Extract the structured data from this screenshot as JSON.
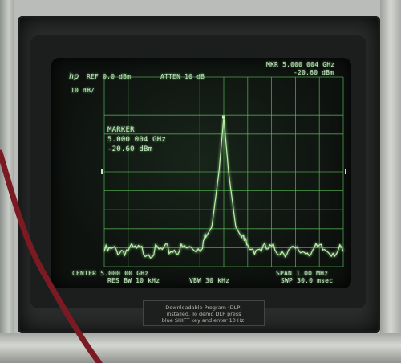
{
  "header": {
    "logo": "hp",
    "ref": "REF  0.0 dBm",
    "atten": "ATTEN 10 dB",
    "marker_readout_1": "MKR 5.000 004 GHz",
    "marker_readout_2": "-20.60 dBm",
    "scale": "10 dB/"
  },
  "marker": {
    "title": "MARKER",
    "frequency": "5.000 004 GHz",
    "level": "-20.60 dBm"
  },
  "footer": {
    "center": "CENTER 5.000 00 GHz",
    "span": "SPAN 1.00 MHz",
    "rbw": "RES BW 10 kHz",
    "vbw": "VBW 30 kHz",
    "sweep": "SWP 30.0 msec"
  },
  "label_plate": {
    "line1": "Downloadable Program (DLP)",
    "line2": "installed. To demo DLP press",
    "line3": "blue SHIFT key and enter 10 Hz."
  },
  "colors": {
    "trace": "#b6f2a6",
    "grid": "#57b957",
    "text": "#c8e7c4",
    "screen": "#0e120f",
    "cable": "#7a1a23"
  },
  "chart_data": {
    "type": "line",
    "x_range_mhz": [
      -0.5,
      0.5
    ],
    "ylim_db_div": [
      0,
      10
    ],
    "grid": true,
    "series": [
      {
        "values": [
          {
            "x": -0.5,
            "y": 0.8
          },
          {
            "x": -0.4,
            "y": 0.9
          },
          {
            "x": -0.3,
            "y": 0.8
          },
          {
            "x": -0.2,
            "y": 0.9
          },
          {
            "x": -0.1,
            "y": 1.0
          },
          {
            "x": -0.05,
            "y": 2.1
          },
          {
            "x": -0.02,
            "y": 5.0
          },
          {
            "x": 0.0,
            "y": 7.9
          },
          {
            "x": 0.02,
            "y": 5.0
          },
          {
            "x": 0.05,
            "y": 2.1
          },
          {
            "x": 0.1,
            "y": 1.0
          },
          {
            "x": 0.2,
            "y": 0.9
          },
          {
            "x": 0.3,
            "y": 0.8
          },
          {
            "x": 0.4,
            "y": 0.9
          },
          {
            "x": 0.5,
            "y": 0.8
          }
        ]
      }
    ]
  }
}
